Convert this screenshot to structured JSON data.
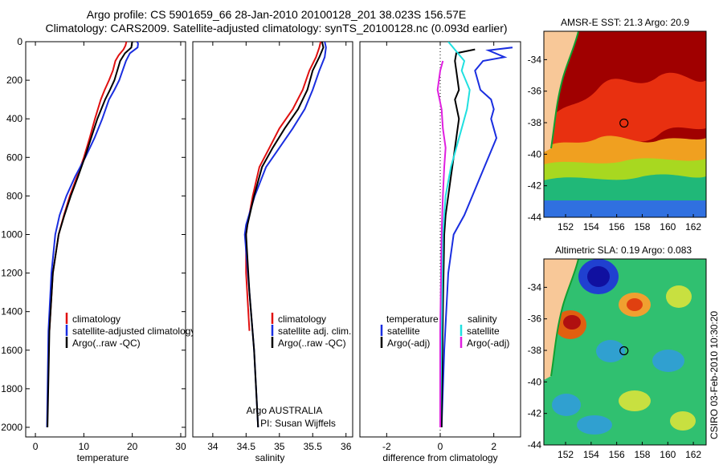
{
  "header": {
    "title_line1": "Argo profile: CS 5901659_66 28-Jan-2010 20100128_201 38.023S 156.57E",
    "title_line2": "Climatology: CARS2009. Satellite-adjusted climatology: synTS_20100128.nc (0.093d earlier)"
  },
  "footer": {
    "credit": "Argo AUSTRALIA",
    "pi": "PI: Susan Wijffels",
    "stamp": "CSIRO 03-Feb-2010 10:30:20"
  },
  "colors": {
    "climatology": "#e01010",
    "satellite": "#1a2ee0",
    "argo": "#000000",
    "satellite_diff": "#20e0e0",
    "argo_adj_diff": "#e020e0",
    "land": "#f8c898",
    "coast_green": "#10a030"
  },
  "chart_data": [
    {
      "type": "line",
      "id": "temperature",
      "xlabel": "temperature",
      "ylabel": "",
      "xlim": [
        -2,
        31
      ],
      "ylim": [
        2050,
        0
      ],
      "xticks": [
        0,
        10,
        20,
        30
      ],
      "yticks": [
        0,
        200,
        400,
        600,
        800,
        1000,
        1200,
        1400,
        1600,
        1800,
        2000
      ],
      "legend": [
        "climatology",
        "satellite-adjusted climatology",
        "Argo(..raw -QC)"
      ],
      "series": [
        {
          "name": "climatology",
          "color": "#e01010",
          "x": [
            18.8,
            18.6,
            18.2,
            17.2,
            16.5,
            16.0,
            15.2,
            14.3,
            13.5,
            12.3,
            11.2,
            10.0,
            8.6,
            7.1,
            5.9,
            4.8,
            3.6,
            2.9
          ],
          "y": [
            0,
            20,
            40,
            70,
            100,
            150,
            200,
            250,
            300,
            400,
            500,
            600,
            700,
            800,
            900,
            1000,
            1200,
            1500
          ]
        },
        {
          "name": "satellite-adjusted climatology",
          "color": "#1a2ee0",
          "x": [
            21.0,
            21.2,
            21.1,
            19.5,
            18.7,
            18.0,
            17.3,
            16.3,
            15.2,
            13.8,
            12.2,
            10.3,
            8.2,
            6.4,
            5.0,
            4.1,
            3.3,
            2.7,
            2.4
          ],
          "y": [
            0,
            10,
            30,
            60,
            100,
            150,
            200,
            250,
            300,
            400,
            500,
            600,
            700,
            800,
            900,
            1000,
            1200,
            1500,
            2000
          ]
        },
        {
          "name": "Argo(..raw -QC)",
          "color": "#000000",
          "x": [
            20.0,
            19.9,
            19.8,
            18.5,
            17.5,
            16.9,
            16.3,
            15.4,
            14.4,
            12.8,
            11.5,
            10.2,
            8.8,
            7.3,
            6.0,
            4.8,
            3.6,
            2.9,
            2.5
          ],
          "y": [
            0,
            10,
            30,
            60,
            100,
            150,
            200,
            250,
            300,
            400,
            500,
            600,
            700,
            800,
            900,
            1000,
            1200,
            1500,
            2000
          ]
        }
      ]
    },
    {
      "type": "line",
      "id": "salinity",
      "xlabel": "salinity",
      "ylabel": "",
      "xlim": [
        33.7,
        36.1
      ],
      "ylim": [
        2050,
        0
      ],
      "xticks": [
        34,
        34.5,
        35,
        35.5,
        36
      ],
      "legend": [
        "climatology",
        "satellite adj. clim.",
        "Argo(..raw -QC)"
      ],
      "series": [
        {
          "name": "climatology",
          "color": "#e01010",
          "x": [
            35.62,
            35.6,
            35.55,
            35.45,
            35.35,
            35.2,
            35.0,
            34.85,
            34.7,
            34.6,
            34.52,
            34.5,
            34.5,
            34.55
          ],
          "y": [
            0,
            30,
            80,
            150,
            250,
            350,
            450,
            550,
            650,
            800,
            950,
            1000,
            1200,
            1500
          ]
        },
        {
          "name": "satellite adj. clim.",
          "color": "#1a2ee0",
          "x": [
            35.68,
            35.7,
            35.68,
            35.6,
            35.5,
            35.38,
            35.2,
            35.0,
            34.8,
            34.63,
            34.5,
            34.48,
            34.55,
            34.62,
            34.68
          ],
          "y": [
            0,
            30,
            80,
            150,
            250,
            350,
            450,
            550,
            650,
            800,
            950,
            1000,
            1300,
            1600,
            2000
          ]
        },
        {
          "name": "Argo(..raw -QC)",
          "color": "#000000",
          "x": [
            35.64,
            35.66,
            35.6,
            35.5,
            35.42,
            35.28,
            35.08,
            34.9,
            34.74,
            34.62,
            34.52,
            34.5,
            34.55,
            34.62,
            34.68
          ],
          "y": [
            0,
            30,
            80,
            150,
            250,
            350,
            450,
            550,
            650,
            800,
            950,
            1000,
            1300,
            1600,
            2000
          ]
        }
      ]
    },
    {
      "type": "line",
      "id": "difference",
      "xlabel": "difference from climatology",
      "ylabel": "",
      "xlim": [
        -3,
        3
      ],
      "ylim": [
        2050,
        0
      ],
      "xticks": [
        -2,
        0,
        2
      ],
      "legend_temperature": {
        "heading": "temperature",
        "items": [
          "satellite",
          "Argo(-adj)"
        ]
      },
      "legend_salinity": {
        "heading": "salinity",
        "items": [
          "satellite",
          "Argo(-adj)"
        ]
      },
      "series": [
        {
          "name": "temperature satellite",
          "color": "#1a2ee0",
          "x": [
            2.7,
            1.8,
            2.4,
            1.6,
            1.3,
            1.5,
            1.9,
            2.0,
            1.9,
            2.1,
            1.8,
            1.5,
            1.2,
            0.9,
            0.5,
            0.3,
            0.15,
            0.05
          ],
          "y": [
            30,
            45,
            80,
            100,
            150,
            250,
            300,
            350,
            400,
            500,
            600,
            700,
            800,
            900,
            1000,
            1200,
            1600,
            2000
          ]
        },
        {
          "name": "temperature Argo(-adj)",
          "color": "#000000",
          "x": [
            1.3,
            0.6,
            0.55,
            0.6,
            0.7,
            0.55,
            0.7,
            0.6,
            0.5,
            0.4,
            0.3,
            0.2,
            0.15,
            0.1,
            0.05
          ],
          "y": [
            40,
            60,
            100,
            150,
            250,
            300,
            400,
            500,
            600,
            700,
            800,
            900,
            1000,
            1400,
            2000
          ]
        },
        {
          "name": "salinity satellite",
          "color": "#20e0e0",
          "x": [
            0.3,
            0.6,
            0.9,
            0.8,
            1.1,
            1.0,
            0.8,
            0.6,
            0.4,
            0.2,
            0.1,
            0.05,
            0.0
          ],
          "y": [
            0,
            50,
            100,
            150,
            250,
            350,
            450,
            550,
            650,
            800,
            1000,
            1500,
            2000
          ]
        },
        {
          "name": "salinity Argo(-adj)",
          "color": "#e020e0",
          "x": [
            0.1,
            0.0,
            -0.1,
            0.05,
            0.1,
            0.2,
            0.15,
            0.1,
            0.05,
            0.0,
            0.0
          ],
          "y": [
            100,
            150,
            250,
            350,
            450,
            550,
            650,
            800,
            1000,
            1500,
            2000
          ]
        }
      ]
    },
    {
      "type": "heatmap",
      "id": "amsre_sst",
      "title": "AMSR-E SST: 21.3 Argo: 20.9",
      "xlim": [
        150.3,
        163
      ],
      "ylim": [
        -44,
        -32.2
      ],
      "xticks": [
        152,
        154,
        156,
        158,
        160,
        162
      ],
      "yticks": [
        -34,
        -36,
        -38,
        -40,
        -42,
        -44
      ],
      "argo_position": {
        "lon": 156.57,
        "lat": -38.023
      }
    },
    {
      "type": "heatmap",
      "id": "altimetric_sla",
      "title": "Altimetric SLA: 0.19 Argo: 0.083",
      "xlim": [
        150.3,
        163
      ],
      "ylim": [
        -44,
        -32.2
      ],
      "xticks": [
        152,
        154,
        156,
        158,
        160,
        162
      ],
      "yticks": [
        -34,
        -36,
        -38,
        -40,
        -42,
        -44
      ],
      "argo_position": {
        "lon": 156.57,
        "lat": -38.023
      }
    }
  ]
}
